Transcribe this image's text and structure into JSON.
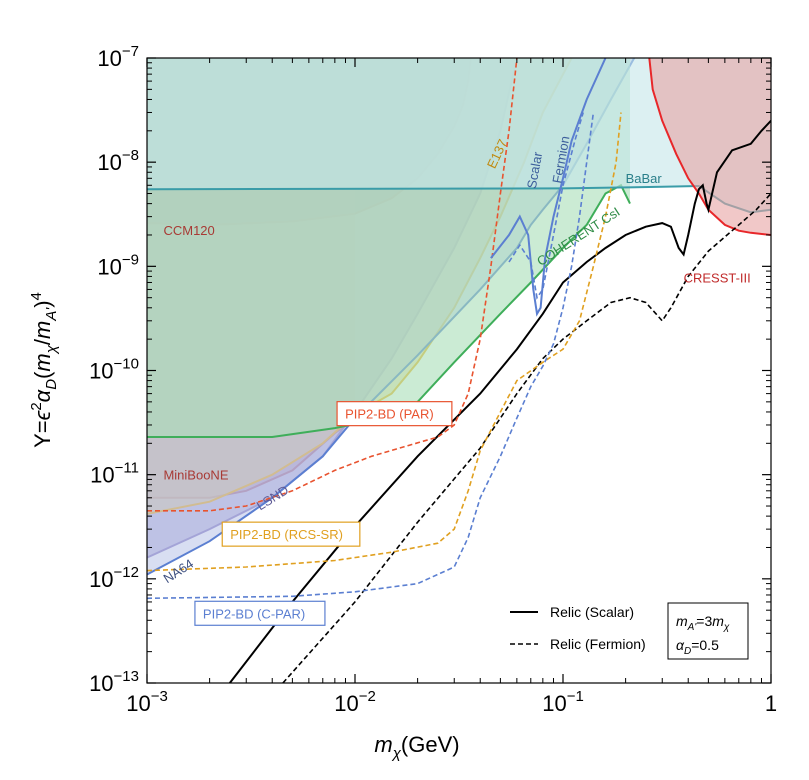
{
  "chart_data": {
    "type": "line",
    "xlabel": "m_χ(GeV)",
    "ylabel": "Y=ε²α_D(m_χ/m_A')⁴",
    "x_scale": "log",
    "y_scale": "log",
    "xlim": [
      0.001,
      1
    ],
    "ylim": [
      1e-13,
      1e-07
    ],
    "x_ticks": [
      {
        "v": 0.001,
        "base": "10",
        "exp": "−3"
      },
      {
        "v": 0.01,
        "base": "10",
        "exp": "−2"
      },
      {
        "v": 0.1,
        "base": "10",
        "exp": "−1"
      },
      {
        "v": 1,
        "base": "1",
        "exp": ""
      }
    ],
    "y_ticks": [
      {
        "v": 1e-13,
        "base": "10",
        "exp": "−13"
      },
      {
        "v": 1e-12,
        "base": "10",
        "exp": "−12"
      },
      {
        "v": 1e-11,
        "base": "10",
        "exp": "−11"
      },
      {
        "v": 1e-10,
        "base": "10",
        "exp": "−10"
      },
      {
        "v": 1e-09,
        "base": "10",
        "exp": "−9"
      },
      {
        "v": 1e-08,
        "base": "10",
        "exp": "−8"
      },
      {
        "v": 1e-07,
        "base": "10",
        "exp": "−7"
      }
    ],
    "regions": [
      {
        "name": "CCM120",
        "color": "#c44d45",
        "fill": "#8f8a78",
        "opacity": 0.75,
        "points": [
          [
            0.001,
            2.6e-09
          ],
          [
            0.002,
            2.5e-09
          ],
          [
            0.005,
            2.7e-09
          ],
          [
            0.01,
            3.2e-09
          ],
          [
            0.015,
            4.5e-09
          ],
          [
            0.02,
            7e-09
          ],
          [
            0.025,
            1.2e-08
          ],
          [
            0.03,
            2.2e-08
          ],
          [
            0.033,
            3.5e-08
          ],
          [
            0.035,
            6e-08
          ],
          [
            0.036,
            1e-07
          ]
        ]
      },
      {
        "name": "MiniBooNE",
        "color": "#c44d45",
        "fill": "#d9a3a0",
        "opacity": 0.6,
        "points": [
          [
            0.001,
            6e-12
          ],
          [
            0.002,
            6e-12
          ],
          [
            0.003,
            7e-12
          ],
          [
            0.005,
            1.1e-11
          ],
          [
            0.008,
            2.5e-11
          ],
          [
            0.01,
            3.5e-11
          ]
        ]
      },
      {
        "name": "LSND",
        "color": "#8c7fc4",
        "fill": "#9f98cf",
        "opacity": 0.6,
        "points": [
          [
            0.001,
            1.6e-12
          ],
          [
            0.002,
            3e-12
          ],
          [
            0.004,
            6e-12
          ],
          [
            0.007,
            1.5e-11
          ],
          [
            0.01,
            4e-11
          ],
          [
            0.015,
            1.3e-10
          ],
          [
            0.02,
            3.5e-10
          ],
          [
            0.03,
            1.5e-09
          ],
          [
            0.04,
            5e-09
          ],
          [
            0.05,
            2e-08
          ],
          [
            0.06,
            1e-07
          ]
        ]
      },
      {
        "name": "E137",
        "color": "#f0b429",
        "fill": "#e8d48a",
        "opacity": 0.55,
        "points": [
          [
            0.001,
            4.2e-12
          ],
          [
            0.002,
            5.5e-12
          ],
          [
            0.004,
            1e-11
          ],
          [
            0.007,
            2e-11
          ],
          [
            0.01,
            3.8e-11
          ],
          [
            0.015,
            6e-11
          ],
          [
            0.02,
            1.2e-10
          ],
          [
            0.03,
            4e-10
          ],
          [
            0.04,
            1.2e-09
          ],
          [
            0.05,
            3e-09
          ],
          [
            0.065,
            1e-08
          ],
          [
            0.08,
            3e-08
          ],
          [
            0.11,
            1e-07
          ]
        ]
      },
      {
        "name": "NA64",
        "color": "#5b7fd1",
        "fill": "#b8c3e8",
        "opacity": 0.55,
        "points": [
          [
            0.001,
            1.1e-12
          ],
          [
            0.002,
            2.3e-12
          ],
          [
            0.004,
            6e-12
          ],
          [
            0.007,
            1.5e-11
          ],
          [
            0.01,
            3.5e-11
          ],
          [
            0.02,
            1.4e-10
          ],
          [
            0.04,
            6e-10
          ],
          [
            0.06,
            1.5e-09
          ],
          [
            0.07,
            2.5e-09
          ],
          [
            0.08,
            3.5e-09
          ],
          [
            0.1,
            6e-09
          ],
          [
            0.13,
            1.5e-08
          ],
          [
            0.17,
            4e-08
          ],
          [
            0.22,
            1e-07
          ]
        ]
      },
      {
        "name": "COHERENT CsI",
        "color": "#3fae5a",
        "fill": "#a8ddb8",
        "opacity": 0.6,
        "points": [
          [
            0.001,
            2.3e-11
          ],
          [
            0.004,
            2.3e-11
          ],
          [
            0.008,
            2.8e-11
          ],
          [
            0.012,
            3.3e-11
          ],
          [
            0.02,
            5e-11
          ],
          [
            0.03,
            1.2e-10
          ],
          [
            0.05,
            3.5e-10
          ],
          [
            0.07,
            7e-10
          ],
          [
            0.1,
            1.5e-09
          ],
          [
            0.13,
            2.5e-09
          ],
          [
            0.16,
            5e-09
          ],
          [
            0.19,
            6e-09
          ],
          [
            0.21,
            4e-09
          ]
        ]
      },
      {
        "name": "BaBar",
        "color": "#3a9ca8",
        "fill": "#c5e6ea",
        "opacity": 0.6,
        "points": [
          [
            0.001,
            5.5e-09
          ],
          [
            0.1,
            5.6e-09
          ],
          [
            0.3,
            5.8e-09
          ],
          [
            0.45,
            5.9e-09
          ],
          [
            0.6,
            4e-09
          ],
          [
            0.8,
            3.3e-09
          ],
          [
            1,
            3.5e-09
          ]
        ]
      },
      {
        "name": "CRESST-III",
        "color": "#e8272a",
        "fill": "#e8a4a4",
        "opacity": 0.6,
        "points": [
          [
            0.26,
            1e-07
          ],
          [
            0.27,
            5e-08
          ],
          [
            0.3,
            2.5e-08
          ],
          [
            0.35,
            1.2e-08
          ],
          [
            0.4,
            7e-09
          ],
          [
            0.45,
            5e-09
          ],
          [
            0.5,
            3.5e-09
          ],
          [
            0.6,
            2.5e-09
          ],
          [
            0.7,
            2.2e-09
          ],
          [
            0.8,
            2.1e-09
          ],
          [
            1,
            2e-09
          ]
        ]
      }
    ],
    "line_series": [
      {
        "name": "Relic (Scalar)",
        "style": "solid",
        "color": "#000000",
        "points": [
          [
            0.0025,
            1e-13
          ],
          [
            0.005,
            6e-13
          ],
          [
            0.01,
            3.2e-12
          ],
          [
            0.02,
            1.5e-11
          ],
          [
            0.04,
            6e-11
          ],
          [
            0.06,
            1.6e-10
          ],
          [
            0.08,
            3.5e-10
          ],
          [
            0.1,
            7e-10
          ],
          [
            0.13,
            1.1e-09
          ],
          [
            0.16,
            1.5e-09
          ],
          [
            0.2,
            2e-09
          ],
          [
            0.25,
            2.4e-09
          ],
          [
            0.3,
            2.6e-09
          ],
          [
            0.33,
            2.4e-09
          ],
          [
            0.36,
            1.5e-09
          ],
          [
            0.38,
            1.3e-09
          ],
          [
            0.4,
            2e-09
          ],
          [
            0.43,
            4e-09
          ],
          [
            0.45,
            5.5e-09
          ],
          [
            0.47,
            6e-09
          ],
          [
            0.49,
            4e-09
          ],
          [
            0.5,
            3.5e-09
          ],
          [
            0.55,
            8e-09
          ],
          [
            0.65,
            1.3e-08
          ],
          [
            0.8,
            1.5e-08
          ],
          [
            0.9,
            2e-08
          ],
          [
            1,
            2.5e-08
          ]
        ]
      },
      {
        "name": "Relic (Fermion)",
        "style": "dashed",
        "color": "#000000",
        "points": [
          [
            0.0045,
            1e-13
          ],
          [
            0.01,
            6e-13
          ],
          [
            0.02,
            3.5e-12
          ],
          [
            0.04,
            1.8e-11
          ],
          [
            0.06,
            6e-11
          ],
          [
            0.08,
            1.3e-10
          ],
          [
            0.1,
            2e-10
          ],
          [
            0.13,
            3e-10
          ],
          [
            0.17,
            4.5e-10
          ],
          [
            0.21,
            5e-10
          ],
          [
            0.25,
            4.5e-10
          ],
          [
            0.28,
            3.5e-10
          ],
          [
            0.3,
            3e-10
          ],
          [
            0.33,
            4e-10
          ],
          [
            0.4,
            8e-10
          ],
          [
            0.5,
            1.4e-09
          ],
          [
            0.7,
            2.5e-09
          ],
          [
            0.85,
            3.5e-09
          ],
          [
            1,
            5e-09
          ]
        ]
      },
      {
        "name": "PIP2-BD (PAR)",
        "style": "dashed",
        "color": "#e8532f",
        "points": [
          [
            0.001,
            4.5e-12
          ],
          [
            0.002,
            4.5e-12
          ],
          [
            0.003,
            5e-12
          ],
          [
            0.005,
            7e-12
          ],
          [
            0.008,
            1.1e-11
          ],
          [
            0.012,
            1.5e-11
          ],
          [
            0.018,
            1.9e-11
          ],
          [
            0.025,
            2.3e-11
          ],
          [
            0.03,
            3e-11
          ],
          [
            0.035,
            6e-11
          ],
          [
            0.04,
            2e-10
          ],
          [
            0.045,
            1e-09
          ],
          [
            0.05,
            5e-09
          ],
          [
            0.055,
            2e-08
          ],
          [
            0.06,
            1e-07
          ]
        ]
      },
      {
        "name": "PIP2-BD (RCS-SR)",
        "style": "dashed",
        "color": "#e0a020",
        "points": [
          [
            0.001,
            1.2e-12
          ],
          [
            0.003,
            1.3e-12
          ],
          [
            0.008,
            1.5e-12
          ],
          [
            0.015,
            1.8e-12
          ],
          [
            0.025,
            2.2e-12
          ],
          [
            0.03,
            3e-12
          ],
          [
            0.035,
            7e-12
          ],
          [
            0.04,
            1.7e-11
          ],
          [
            0.05,
            4e-11
          ],
          [
            0.06,
            8e-11
          ],
          [
            0.08,
            1.2e-10
          ],
          [
            0.1,
            1.6e-10
          ],
          [
            0.12,
            3e-10
          ],
          [
            0.14,
            1e-09
          ],
          [
            0.16,
            3e-09
          ],
          [
            0.18,
            1e-08
          ],
          [
            0.19,
            3e-08
          ]
        ]
      },
      {
        "name": "PIP2-BD (C-PAR)",
        "style": "dashed",
        "color": "#5b7fd1",
        "points": [
          [
            0.001,
            6.5e-13
          ],
          [
            0.005,
            6.8e-13
          ],
          [
            0.01,
            7.5e-13
          ],
          [
            0.02,
            9e-13
          ],
          [
            0.03,
            1.3e-12
          ],
          [
            0.035,
            2.5e-12
          ],
          [
            0.04,
            6e-12
          ],
          [
            0.05,
            1.5e-11
          ],
          [
            0.06,
            3.5e-11
          ],
          [
            0.07,
            7e-11
          ],
          [
            0.08,
            1.1e-10
          ],
          [
            0.09,
            1.8e-10
          ],
          [
            0.1,
            4e-10
          ],
          [
            0.11,
            1e-09
          ],
          [
            0.12,
            3e-09
          ],
          [
            0.13,
            1e-08
          ],
          [
            0.14,
            3e-08
          ]
        ]
      },
      {
        "name": "Scalar",
        "style": "solid",
        "color": "#5b7fd1",
        "points": [
          [
            0.045,
            1.2e-09
          ],
          [
            0.055,
            2e-09
          ],
          [
            0.062,
            3e-09
          ],
          [
            0.068,
            2e-09
          ],
          [
            0.072,
            6e-10
          ],
          [
            0.075,
            3.5e-10
          ],
          [
            0.078,
            4e-10
          ],
          [
            0.082,
            1.2e-09
          ],
          [
            0.09,
            3e-09
          ],
          [
            0.1,
            7e-09
          ],
          [
            0.11,
            1.6e-08
          ],
          [
            0.13,
            4e-08
          ],
          [
            0.16,
            1e-07
          ]
        ]
      },
      {
        "name": "Fermion",
        "style": "dashed",
        "color": "#5b7fd1",
        "points": [
          [
            0.055,
            1.1e-09
          ],
          [
            0.062,
            1.6e-09
          ],
          [
            0.07,
            1.1e-09
          ],
          [
            0.075,
            5e-10
          ],
          [
            0.08,
            6e-10
          ],
          [
            0.09,
            2e-09
          ],
          [
            0.1,
            6e-09
          ],
          [
            0.115,
            1.7e-08
          ],
          [
            0.125,
            3e-08
          ]
        ]
      }
    ],
    "annotations": [
      {
        "text": "CCM120",
        "x": 0.0012,
        "y": 2e-09,
        "color": "#a83a35",
        "rotate": 0
      },
      {
        "text": "MiniBooNE",
        "x": 0.0012,
        "y": 9e-12,
        "color": "#a83a35",
        "rotate": 0
      },
      {
        "text": "LSND",
        "x": 0.0035,
        "y": 4.5e-12,
        "color": "#5e5a96",
        "rotate": -32
      },
      {
        "text": "NA64",
        "x": 0.00125,
        "y": 9e-13,
        "color": "#3d4f80",
        "rotate": -33
      },
      {
        "text": "E137",
        "x": 0.047,
        "y": 8.5e-09,
        "color": "#c08a10",
        "rotate": -65
      },
      {
        "text": "Scalar",
        "x": 0.074,
        "y": 5.5e-09,
        "color": "#3d5f9c",
        "rotate": -80
      },
      {
        "text": "Fermion",
        "x": 0.098,
        "y": 6.2e-09,
        "color": "#3d5f9c",
        "rotate": -80
      },
      {
        "text": "COHERENT CsI",
        "x": 0.078,
        "y": 1e-09,
        "color": "#2e8c46",
        "rotate": -33
      },
      {
        "text": "BaBar",
        "x": 0.2,
        "y": 6.3e-09,
        "color": "#2a7f8a",
        "rotate": 0
      },
      {
        "text": "CRESST-III",
        "x": 0.38,
        "y": 7e-10,
        "color": "#c02a2a",
        "rotate": 0
      }
    ],
    "boxed_labels": [
      {
        "text": "PIP2-BD (PAR)",
        "x": 0.0082,
        "y": 3.3e-11,
        "color": "#e8532f"
      },
      {
        "text": "PIP2-BD (RCS-SR)",
        "x": 0.0023,
        "y": 2.3e-12,
        "color": "#e0a020"
      },
      {
        "text": "PIP2-BD (C-PAR)",
        "x": 0.0017,
        "y": 4e-13,
        "color": "#5b7fd1"
      }
    ],
    "legend": {
      "position": "bottom-right",
      "entries": [
        {
          "label": "Relic (Scalar)",
          "style": "solid"
        },
        {
          "label": "Relic (Fermion)",
          "style": "dashed"
        }
      ],
      "params": [
        "m_A' = 3m_χ",
        "α_D = 0.5"
      ]
    }
  }
}
